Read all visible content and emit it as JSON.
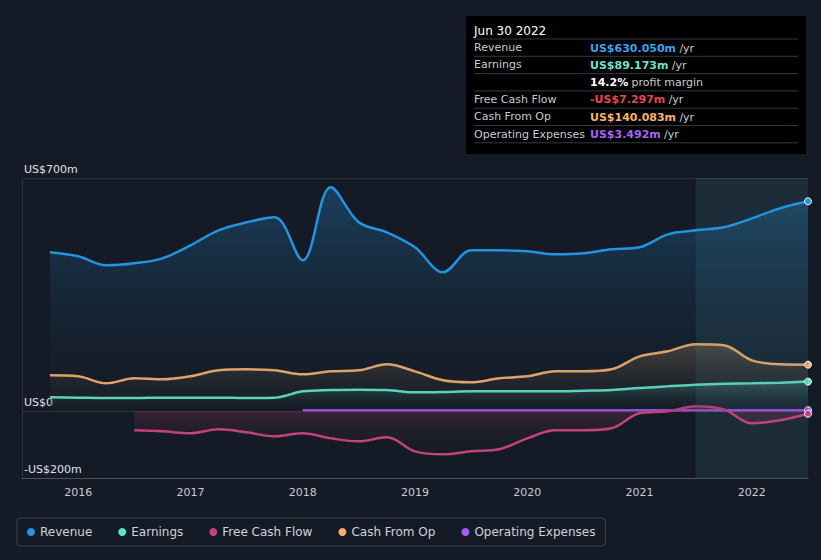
{
  "chart_data": {
    "type": "line",
    "x": [
      2015.75,
      2016,
      2016.25,
      2016.5,
      2016.75,
      2017,
      2017.25,
      2017.5,
      2017.75,
      2018,
      2018.25,
      2018.5,
      2018.75,
      2019,
      2019.25,
      2019.5,
      2019.75,
      2020,
      2020.25,
      2020.5,
      2020.75,
      2021,
      2021.25,
      2021.5,
      2021.75,
      2022,
      2022.25,
      2022.5
    ],
    "xlim": [
      2015.5,
      2022.5
    ],
    "xticks": [
      2016,
      2017,
      2018,
      2019,
      2020,
      2021,
      2022
    ],
    "ylim": [
      -200,
      700
    ],
    "yticks": [
      {
        "value": -200,
        "label": "-US$200m"
      },
      {
        "value": 0,
        "label": "US$0"
      },
      {
        "value": 700,
        "label": "US$700m"
      }
    ],
    "grid": true,
    "legend": "bottom",
    "highlight_range": [
      2021.5,
      2022.5
    ],
    "series": [
      {
        "name": "Revenue",
        "color": "#2394df",
        "values": [
          477,
          465,
          438,
          444,
          459,
          498,
          543,
          567,
          582,
          453,
          672,
          567,
          537,
          492,
          417,
          483,
          483,
          480,
          471,
          474,
          486,
          492,
          531,
          543,
          552,
          579,
          609,
          630.05
        ]
      },
      {
        "name": "Earnings",
        "color": "#5fe0c8",
        "values": [
          42,
          41,
          40,
          40,
          41,
          41,
          41,
          40,
          41,
          60,
          64,
          65,
          64,
          57,
          58,
          60,
          60,
          60,
          60,
          62,
          64,
          70,
          75,
          80,
          83,
          84,
          86,
          89.173
        ]
      },
      {
        "name": "Free Cash Flow",
        "color": "#c2437a",
        "values": [
          null,
          null,
          null,
          -57,
          -60,
          -66,
          -54,
          -63,
          -75,
          -66,
          -81,
          -90,
          -78,
          -120,
          -129,
          -120,
          -114,
          -81,
          -57,
          -57,
          -51,
          -6,
          0,
          15,
          6,
          -36,
          -27,
          -7.297
        ]
      },
      {
        "name": "Cash From Op",
        "color": "#f2b06b",
        "values": [
          108,
          105,
          84,
          99,
          96,
          105,
          123,
          126,
          123,
          111,
          120,
          123,
          141,
          120,
          93,
          87,
          99,
          105,
          120,
          120,
          126,
          165,
          180,
          201,
          198,
          153,
          141,
          140.083
        ]
      },
      {
        "name": "Operating Expenses",
        "color": "#a35ef0",
        "values": [
          null,
          null,
          null,
          null,
          null,
          null,
          null,
          null,
          null,
          3,
          3,
          3,
          3,
          3,
          3,
          3,
          3,
          3,
          3,
          3,
          3,
          3,
          3,
          3,
          3,
          3.5,
          3.5,
          3.492
        ]
      }
    ],
    "info_panel": {
      "title": "Jun 30 2022",
      "rows": [
        {
          "label": "Revenue",
          "value": "US$630.050m",
          "unit": "/yr",
          "color": "#3aa3ef"
        },
        {
          "label": "Earnings",
          "value": "US$89.173m",
          "unit": "/yr",
          "color": "#6fe3cc"
        },
        {
          "note_value": "14.2%",
          "note": "profit margin"
        },
        {
          "label": "Free Cash Flow",
          "value": "-US$7.297m",
          "unit": "/yr",
          "color": "#e5484d"
        },
        {
          "label": "Cash From Op",
          "value": "US$140.083m",
          "unit": "/yr",
          "color": "#f5b26b"
        },
        {
          "label": "Operating Expenses",
          "value": "US$3.492m",
          "unit": "/yr",
          "color": "#a566f5"
        }
      ]
    }
  }
}
